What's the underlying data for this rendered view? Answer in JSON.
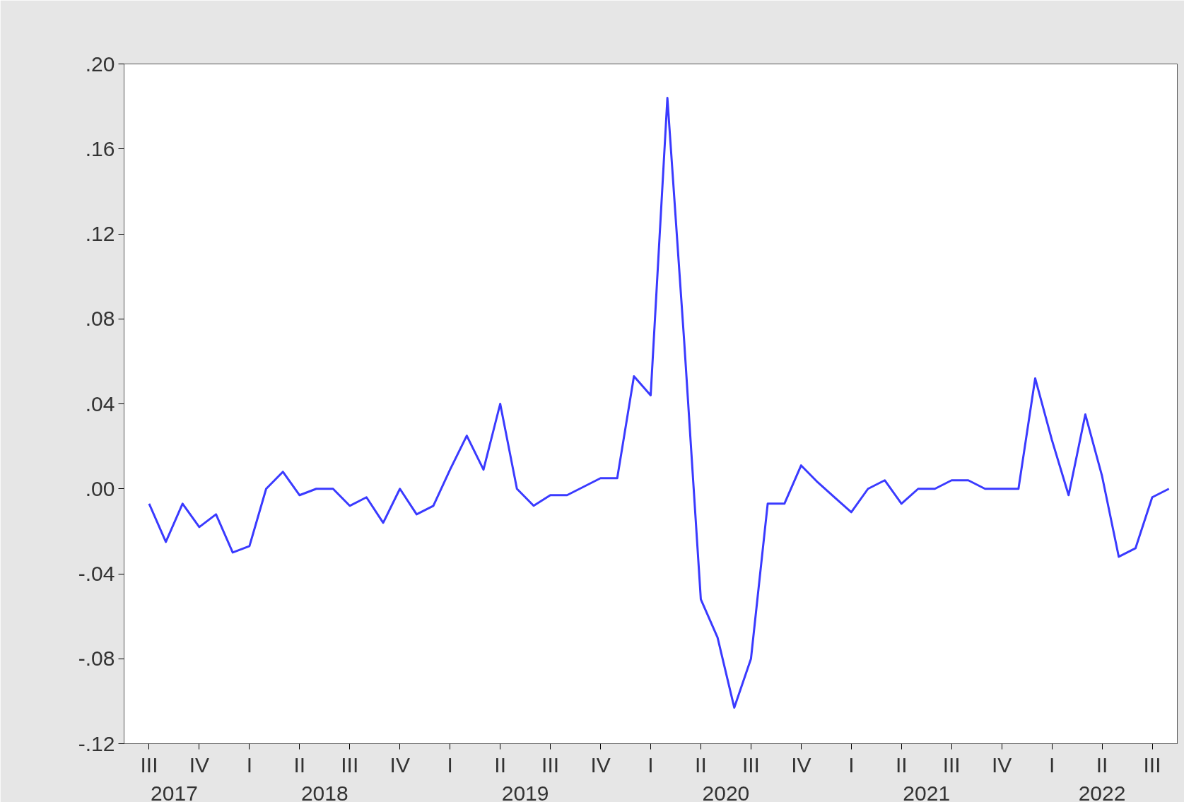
{
  "chart_data": {
    "type": "line",
    "categories": [
      "III",
      null,
      null,
      "IV",
      null,
      null,
      "I",
      null,
      null,
      "II",
      null,
      null,
      "III",
      null,
      null,
      "IV",
      null,
      null,
      "I",
      null,
      null,
      "II",
      null,
      null,
      "III",
      null,
      null,
      "IV",
      null,
      null,
      "I",
      null,
      null,
      "II",
      null,
      null,
      "III",
      null,
      null,
      "IV",
      null,
      null,
      "I",
      null,
      null,
      "II",
      null,
      null,
      "III",
      null,
      null,
      "IV",
      null,
      null,
      "I",
      null,
      null,
      "II",
      null,
      null,
      "III",
      null
    ],
    "series": [
      {
        "color": "#3a3aff",
        "values": [
          -0.007,
          -0.025,
          -0.007,
          -0.018,
          -0.012,
          -0.03,
          -0.027,
          0.0,
          0.008,
          -0.003,
          0.0,
          0.0,
          -0.008,
          -0.004,
          -0.016,
          0.0,
          -0.012,
          -0.008,
          0.009,
          0.025,
          0.009,
          0.04,
          0.0,
          -0.008,
          -0.003,
          -0.003,
          0.001,
          0.005,
          0.005,
          0.053,
          0.044,
          0.184,
          0.07,
          -0.052,
          -0.07,
          -0.103,
          -0.08,
          -0.007,
          -0.007,
          0.011,
          0.003,
          -0.004,
          -0.011,
          0.0,
          0.004,
          -0.007,
          0.0,
          0.0,
          0.004,
          0.004,
          0.0,
          0.0,
          0.0,
          0.052,
          0.023,
          -0.003,
          0.035,
          0.006,
          -0.032,
          -0.028,
          -0.004,
          0.0
        ]
      }
    ],
    "annotations": [
      "2017",
      "2018",
      "2019",
      "2020",
      "2021",
      "2022"
    ],
    "ylim": [
      -0.12,
      0.2
    ],
    "yticks": [
      {
        "value": -0.12,
        "label": "-.12"
      },
      {
        "value": -0.08,
        "label": "-.08"
      },
      {
        "value": -0.04,
        "label": "-.04"
      },
      {
        "value": 0,
        "label": ".00"
      },
      {
        "value": 0.04,
        "label": ".04"
      },
      {
        "value": 0.08,
        "label": ".08"
      },
      {
        "value": 0.12,
        "label": ".12"
      },
      {
        "value": 0.16,
        "label": ".16"
      },
      {
        "value": 0.2,
        "label": ".20"
      }
    ],
    "grid": false,
    "marker": "none",
    "line_style": "solid"
  }
}
